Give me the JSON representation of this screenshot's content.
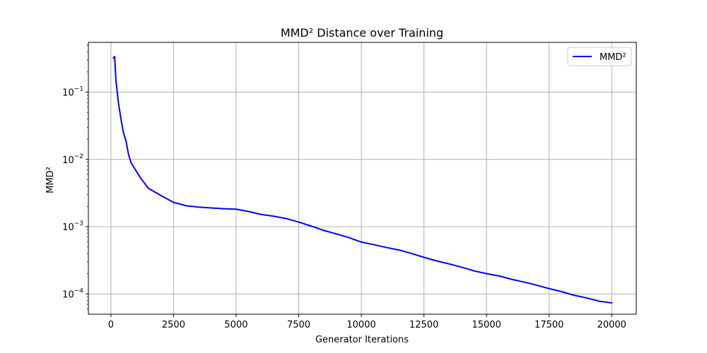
{
  "chart_data": {
    "type": "line",
    "title": "MMD² Distance over Training",
    "xlabel": "Generator Iterations",
    "ylabel": "MMD²",
    "xlim": [
      -900,
      20980
    ],
    "ylim": [
      5e-05,
      0.55
    ],
    "yscale": "log",
    "grid": true,
    "legend_position": "top-right",
    "x_ticks": [
      0,
      2500,
      5000,
      7500,
      10000,
      12500,
      15000,
      17500,
      20000
    ],
    "x_tick_labels": [
      "0",
      "2500",
      "5000",
      "7500",
      "10000",
      "12500",
      "15000",
      "17500",
      "20000"
    ],
    "y_ticks": [
      0.0001,
      0.001,
      0.01,
      0.1
    ],
    "y_tick_labels": [
      {
        "base": "10",
        "exp": "−4"
      },
      {
        "base": "10",
        "exp": "−3"
      },
      {
        "base": "10",
        "exp": "−2"
      },
      {
        "base": "10",
        "exp": "−1"
      }
    ],
    "series": [
      {
        "name": "MMD²",
        "color": "#0000ff",
        "x": [
          100,
          150,
          200,
          300,
          400,
          500,
          600,
          700,
          800,
          1000,
          1200,
          1500,
          2000,
          2500,
          3000,
          3500,
          4000,
          4500,
          5000,
          5500,
          6000,
          6500,
          7000,
          7500,
          8000,
          8500,
          9000,
          9500,
          10000,
          10500,
          11000,
          11500,
          12000,
          12500,
          13000,
          13500,
          14000,
          14500,
          15000,
          15500,
          16000,
          16500,
          17000,
          17500,
          18000,
          18500,
          19000,
          19500,
          20000
        ],
        "values": [
          0.32,
          0.34,
          0.15,
          0.07,
          0.04,
          0.025,
          0.019,
          0.012,
          0.009,
          0.0068,
          0.0052,
          0.0037,
          0.0029,
          0.0023,
          0.00205,
          0.00195,
          0.0019,
          0.00185,
          0.00182,
          0.00168,
          0.00152,
          0.00143,
          0.00132,
          0.00117,
          0.00102,
          0.00088,
          0.00078,
          0.00069,
          0.00059,
          0.00054,
          0.00049,
          0.00045,
          0.0004,
          0.00035,
          0.00031,
          0.00028,
          0.00025,
          0.00022,
          0.0002,
          0.000185,
          0.000165,
          0.00015,
          0.000135,
          0.00012,
          0.000108,
          9.55e-05,
          8.7e-05,
          7.8e-05,
          7.35e-05
        ]
      }
    ]
  }
}
